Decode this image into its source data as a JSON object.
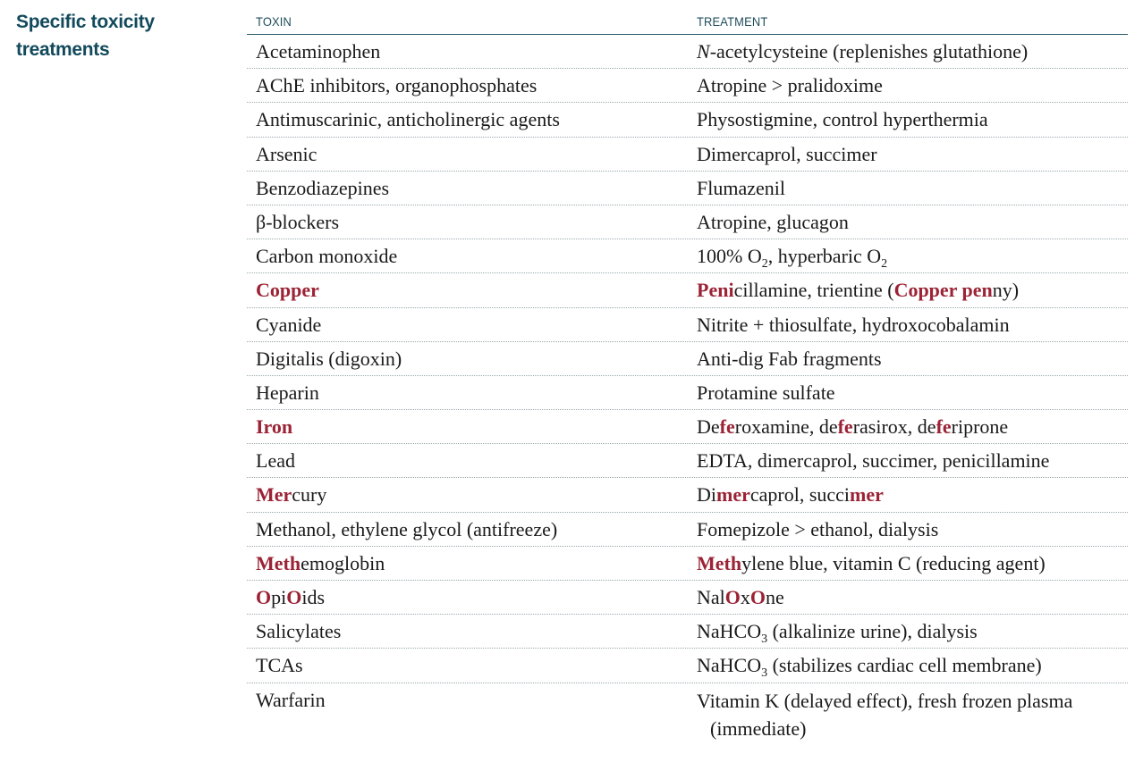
{
  "section_title": "Specific toxicity treatments",
  "table": {
    "headers": {
      "toxin": "TOXIN",
      "treatment": "TREATMENT"
    },
    "rows": [
      {
        "toxin": [
          {
            "t": "Acetaminophen"
          }
        ],
        "treatment": [
          {
            "t": "N",
            "i": true
          },
          {
            "t": "-acetylcysteine (replenishes glutathione)"
          }
        ]
      },
      {
        "toxin": [
          {
            "t": "AChE inhibitors, organophosphates"
          }
        ],
        "treatment": [
          {
            "t": "Atropine > pralidoxime"
          }
        ]
      },
      {
        "toxin": [
          {
            "t": "Antimuscarinic, anticholinergic agents"
          }
        ],
        "treatment": [
          {
            "t": "Physostigmine, control hyperthermia"
          }
        ]
      },
      {
        "toxin": [
          {
            "t": "Arsenic"
          }
        ],
        "treatment": [
          {
            "t": "Dimercaprol, succimer"
          }
        ]
      },
      {
        "toxin": [
          {
            "t": "Benzodiazepines"
          }
        ],
        "treatment": [
          {
            "t": "Flumazenil"
          }
        ]
      },
      {
        "toxin": [
          {
            "t": "β-blockers"
          }
        ],
        "treatment": [
          {
            "t": "Atropine, glucagon"
          }
        ]
      },
      {
        "toxin": [
          {
            "t": "Carbon monoxide"
          }
        ],
        "treatment": [
          {
            "t": "100% O"
          },
          {
            "t": "2",
            "sub": true
          },
          {
            "t": ", hyperbaric O"
          },
          {
            "t": "2",
            "sub": true
          }
        ]
      },
      {
        "toxin": [
          {
            "t": "Copper",
            "hl": true
          }
        ],
        "treatment": [
          {
            "t": "Peni",
            "hl": true
          },
          {
            "t": "cillamine, trientine ("
          },
          {
            "t": "Copper pen",
            "hl": true
          },
          {
            "t": "ny)"
          }
        ]
      },
      {
        "toxin": [
          {
            "t": "Cyanide"
          }
        ],
        "treatment": [
          {
            "t": "Nitrite + thiosulfate, hydroxocobalamin"
          }
        ]
      },
      {
        "toxin": [
          {
            "t": "Digitalis (digoxin)"
          }
        ],
        "treatment": [
          {
            "t": "Anti-dig Fab fragments"
          }
        ]
      },
      {
        "toxin": [
          {
            "t": "Heparin"
          }
        ],
        "treatment": [
          {
            "t": "Protamine sulfate"
          }
        ]
      },
      {
        "toxin": [
          {
            "t": "Iron",
            "hl": true
          }
        ],
        "treatment": [
          {
            "t": "De"
          },
          {
            "t": "fe",
            "hl": true
          },
          {
            "t": "roxamine, de"
          },
          {
            "t": "fe",
            "hl": true
          },
          {
            "t": "rasirox, de"
          },
          {
            "t": "fe",
            "hl": true
          },
          {
            "t": "riprone"
          }
        ]
      },
      {
        "toxin": [
          {
            "t": "Lead"
          }
        ],
        "treatment": [
          {
            "t": "EDTA, dimercaprol, succimer, penicillamine"
          }
        ]
      },
      {
        "toxin": [
          {
            "t": "Mer",
            "hl": true
          },
          {
            "t": "cury"
          }
        ],
        "treatment": [
          {
            "t": "Di"
          },
          {
            "t": "mer",
            "hl": true
          },
          {
            "t": "caprol, succi"
          },
          {
            "t": "mer",
            "hl": true
          }
        ]
      },
      {
        "toxin": [
          {
            "t": "Methanol, ethylene glycol (antifreeze)"
          }
        ],
        "treatment": [
          {
            "t": "Fomepizole > ethanol, dialysis"
          }
        ]
      },
      {
        "toxin": [
          {
            "t": "Meth",
            "hl": true
          },
          {
            "t": "emoglobin"
          }
        ],
        "treatment": [
          {
            "t": "Meth",
            "hl": true
          },
          {
            "t": "ylene blue, vitamin C (reducing agent)"
          }
        ]
      },
      {
        "toxin": [
          {
            "t": "O",
            "hl": true
          },
          {
            "t": "pi"
          },
          {
            "t": "O",
            "hl": true
          },
          {
            "t": "ids"
          }
        ],
        "treatment": [
          {
            "t": "Nal"
          },
          {
            "t": "O",
            "hl": true
          },
          {
            "t": "x"
          },
          {
            "t": "O",
            "hl": true
          },
          {
            "t": "ne"
          }
        ]
      },
      {
        "toxin": [
          {
            "t": "Salicylates"
          }
        ],
        "treatment": [
          {
            "t": "NaHCO"
          },
          {
            "t": "3",
            "sub": true
          },
          {
            "t": " (alkalinize urine), dialysis"
          }
        ]
      },
      {
        "toxin": [
          {
            "t": "TCAs"
          }
        ],
        "treatment": [
          {
            "t": "NaHCO"
          },
          {
            "t": "3",
            "sub": true
          },
          {
            "t": " (stabilizes cardiac cell membrane)"
          }
        ]
      },
      {
        "toxin": [
          {
            "t": "Warfarin"
          }
        ],
        "treatment": [
          {
            "t": "Vitamin K (delayed effect), fresh frozen plasma"
          },
          {
            "br": true
          },
          {
            "t": "(immediate)",
            "cont": true
          }
        ]
      }
    ]
  },
  "colors": {
    "title": "#124a5c",
    "highlight": "#9b2335"
  }
}
